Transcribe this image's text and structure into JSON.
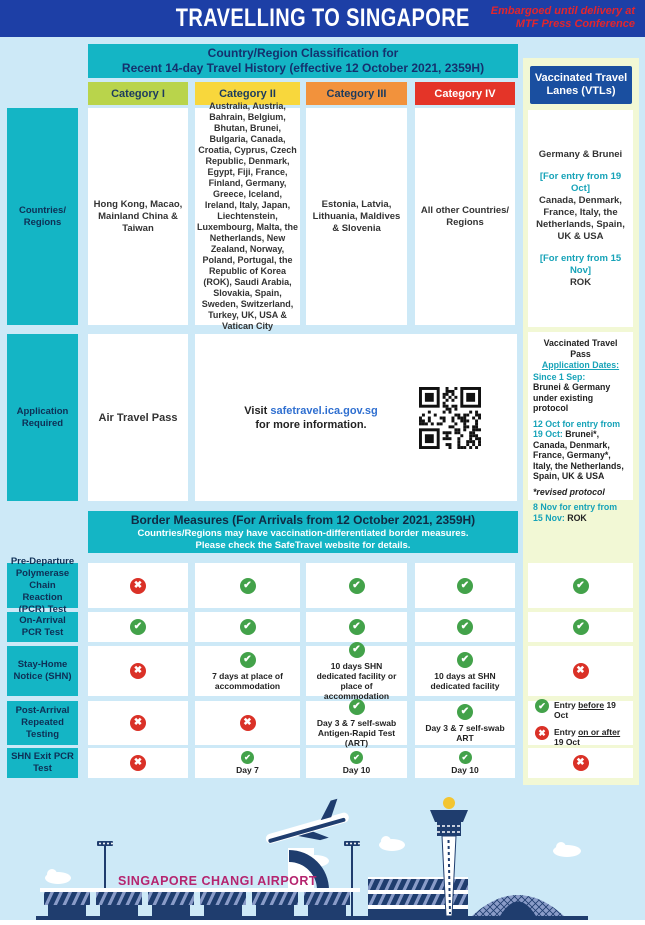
{
  "page": {
    "title": "TRAVELLING TO SINGAPORE",
    "embargo_line1": "Embargoed until delivery at",
    "embargo_line2": "MTF Press Conference"
  },
  "classification": {
    "heading_line1": "Country/Region Classification for",
    "heading_line2": "Recent 14-day Travel History (effective 12 October 2021, 2359H)",
    "categories": [
      "Category I",
      "Category II",
      "Category III",
      "Category IV"
    ],
    "vtl_header": "Vaccinated Travel Lanes (VTLs)"
  },
  "countries": {
    "label": "Countries/ Regions",
    "cat1": "Hong Kong, Macao, Mainland China & Taiwan",
    "cat2": "Australia, Austria, Bahrain, Belgium, Bhutan, Brunei, Bulgaria, Canada, Croatia, Cyprus, Czech Republic, Denmark, Egypt, Fiji, France, Finland, Germany, Greece, Iceland, Ireland, Italy, Japan, Liechtenstein, Luxembourg, Malta, the Netherlands, New Zealand, Norway, Poland, Portugal, the Republic of Korea (ROK), Saudi Arabia, Slovakia, Spain, Sweden, Switzerland, Turkey, UK, USA & Vatican City",
    "cat3": "Estonia, Latvia, Lithuania, Maldives & Slovenia",
    "cat4": "All other Countries/ Regions",
    "vtl_line1": "Germany & Brunei",
    "vtl_tag1": "[For entry from 19 Oct]",
    "vtl_line2": "Canada, Denmark, France, Italy, the Netherlands, Spain, UK & USA",
    "vtl_tag2": "[For entry from 15 Nov]",
    "vtl_line3": "ROK"
  },
  "application": {
    "label": "Application Required",
    "cat1": "Air Travel Pass",
    "visit_prefix": "Visit ",
    "visit_link": "safetravel.ica.gov.sg",
    "visit_suffix": "for more information.",
    "vtl": {
      "title": "Vaccinated Travel Pass",
      "dates_heading": "Application Dates:",
      "since_label": "Since 1 Sep:",
      "since_text": "Brunei & Germany under existing protocol",
      "oct_label": "12 Oct for entry from 19 Oct:",
      "oct_text": "Brunei*, Canada, Denmark, France, Germany*, Italy, the Netherlands, Spain, UK & USA",
      "footnote": "*revised protocol",
      "nov_label": "8 Nov for entry from 15 Nov:",
      "nov_text": "ROK"
    }
  },
  "border": {
    "title": "Border Measures (For Arrivals from 12 October 2021, 2359H)",
    "sub1": "Countries/Regions may have vaccination-differentiated border measures.",
    "sub2": "Please check the SafeTravel website for details."
  },
  "measures": {
    "rows": [
      {
        "label": "Pre-Departure Polymerase Chain Reaction (PCR) Test",
        "cells": [
          {
            "icon": "cross",
            "text": ""
          },
          {
            "icon": "check",
            "text": ""
          },
          {
            "icon": "check",
            "text": ""
          },
          {
            "icon": "check",
            "text": ""
          },
          {
            "icon": "check",
            "text": ""
          }
        ]
      },
      {
        "label": "On-Arrival PCR Test",
        "cells": [
          {
            "icon": "check",
            "text": ""
          },
          {
            "icon": "check",
            "text": ""
          },
          {
            "icon": "check",
            "text": ""
          },
          {
            "icon": "check",
            "text": ""
          },
          {
            "icon": "check",
            "text": ""
          }
        ]
      },
      {
        "label": "Stay-Home Notice (SHN)",
        "cells": [
          {
            "icon": "cross",
            "text": ""
          },
          {
            "icon": "check",
            "text": "7 days at place of accommodation"
          },
          {
            "icon": "check",
            "text": "10 days SHN dedicated facility or place of accommodation"
          },
          {
            "icon": "check",
            "text": "10 days at SHN dedicated facility"
          },
          {
            "icon": "cross",
            "text": ""
          }
        ]
      },
      {
        "label": "Post-Arrival Repeated Testing",
        "cells": [
          {
            "icon": "cross",
            "text": ""
          },
          {
            "icon": "cross",
            "text": ""
          },
          {
            "icon": "check",
            "text": "Day 3 & 7 self-swab Antigen-Rapid Test (ART)"
          },
          {
            "icon": "check",
            "text": "Day 3 & 7 self-swab ART"
          },
          {
            "icon": "",
            "text": ""
          }
        ]
      },
      {
        "label": "SHN Exit PCR Test",
        "cells": [
          {
            "icon": "cross",
            "text": ""
          },
          {
            "icon": "check",
            "text": "Day 7"
          },
          {
            "icon": "check",
            "text": "Day 10"
          },
          {
            "icon": "check",
            "text": "Day 10"
          },
          {
            "icon": "cross",
            "text": ""
          }
        ]
      }
    ],
    "vtl_post_arrival": {
      "line1": {
        "icon": "check",
        "prefix": "Entry ",
        "underline": "before",
        "suffix": " 19 Oct"
      },
      "line2": {
        "icon": "cross",
        "prefix": "Entry ",
        "underline": "on or after",
        "suffix": " 19 Oct"
      }
    }
  },
  "footer": {
    "airport_label": "SINGAPORE CHANGI AIRPORT"
  },
  "colors": {
    "header_blue": "#1d3fa6",
    "embargo_red": "#e4252c",
    "teal": "#14b5c5",
    "cat1_green": "#b9d44b",
    "cat2_yellow": "#f8d73c",
    "cat3_orange": "#f2923c",
    "cat4_red": "#e43428",
    "vtl_header_blue": "#1a4fa0",
    "vtl_pale_yellow": "#f2f8d5",
    "check_green": "#43a24a",
    "cross_red": "#da3127",
    "link_blue": "#2f6fd0",
    "teal_text": "#17a3b8",
    "airport_magenta": "#b5256f",
    "illustration_navy": "#1f3d6e",
    "page_bg": "#cde9f7"
  }
}
